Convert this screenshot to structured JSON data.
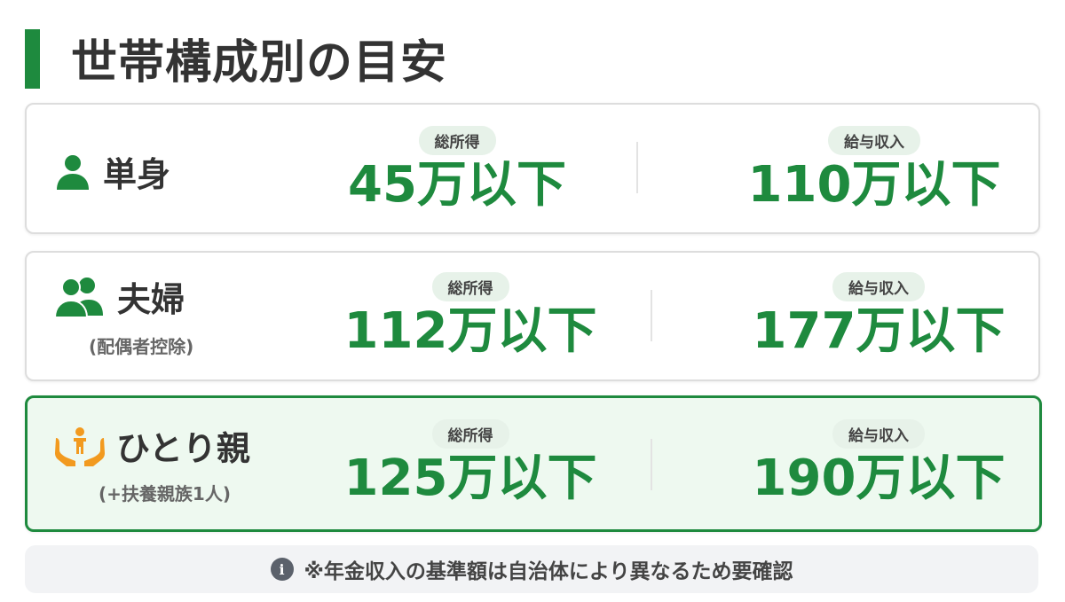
{
  "title": "世帯構成別の目安",
  "colors": {
    "accent": "#1e8a3e",
    "highlight_bg": "#eef9f0",
    "icon_orange": "#f29a1f"
  },
  "cards": [
    {
      "icon": "person-icon",
      "name": "単身",
      "sub": "",
      "income_label": "総所得",
      "income": "45万以下",
      "salary_label": "給与収入",
      "salary": "110万以下",
      "highlighted": false
    },
    {
      "icon": "couple-icon",
      "name": "夫婦",
      "sub": "(配偶者控除)",
      "income_label": "総所得",
      "income": "112万以下",
      "salary_label": "給与収入",
      "salary": "177万以下",
      "highlighted": false
    },
    {
      "icon": "hands-child-icon",
      "name": "ひとり親",
      "sub": "(+扶養親族1人)",
      "income_label": "総所得",
      "income": "125万以下",
      "salary_label": "給与収入",
      "salary": "190万以下",
      "highlighted": true
    }
  ],
  "note": {
    "icon": "info-icon",
    "text": "※年金収入の基準額は自治体により異なるため要確認"
  }
}
